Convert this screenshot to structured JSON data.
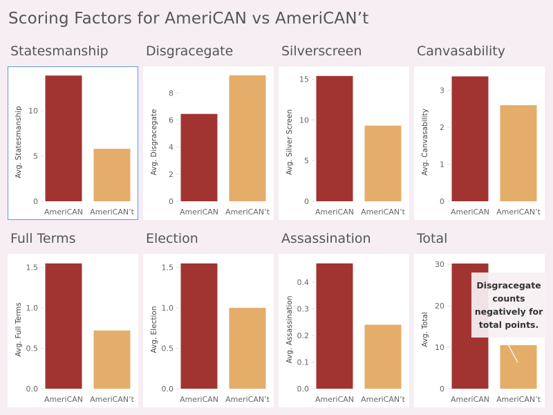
{
  "page_title": "Scoring Factors for AmeriCAN vs AmeriCAN’t",
  "colors": {
    "americans": "#a13431",
    "americants": "#e5ad6a"
  },
  "annotation": {
    "text": "Disgracegate counts negatively for total points."
  },
  "chart_data": [
    {
      "type": "bar",
      "title": "Statesmanship",
      "ylabel": "Avg. Statesmanship",
      "categories": [
        "AmeriCAN",
        "AmeriCAN’t"
      ],
      "values": [
        13.9,
        5.8
      ],
      "ylim": [
        0,
        14.3
      ],
      "ticks": [
        0,
        5,
        10
      ],
      "tick_labels": [
        "0",
        "5",
        "10"
      ],
      "grid": false
    },
    {
      "type": "bar",
      "title": "Disgracegate",
      "ylabel": "Avg. Disgracegate",
      "categories": [
        "AmeriCAN",
        "AmeriCAN’t"
      ],
      "values": [
        6.45,
        9.3
      ],
      "ylim": [
        0,
        9.55
      ],
      "ticks": [
        0,
        2,
        4,
        6,
        8
      ],
      "tick_labels": [
        "0",
        "2",
        "4",
        "6",
        "8"
      ],
      "grid": false
    },
    {
      "type": "bar",
      "title": "Silverscreen",
      "ylabel": "Avg. Silver Screen",
      "categories": [
        "AmeriCAN",
        "AmeriCAN’t"
      ],
      "values": [
        15.4,
        9.3
      ],
      "ylim": [
        0,
        15.9
      ],
      "ticks": [
        0,
        5,
        10,
        15
      ],
      "tick_labels": [
        "0",
        "5",
        "10",
        "15"
      ],
      "grid": false
    },
    {
      "type": "bar",
      "title": "Canvasability",
      "ylabel": "Avg. Canvasability",
      "categories": [
        "AmeriCAN",
        "AmeriCAN’t"
      ],
      "values": [
        3.38,
        2.6
      ],
      "ylim": [
        0,
        3.5
      ],
      "ticks": [
        0,
        1,
        2,
        3
      ],
      "tick_labels": [
        "0",
        "1",
        "2",
        "3"
      ],
      "grid": false
    },
    {
      "type": "bar",
      "title": "Full Terms",
      "ylabel": "Avg. Full Terms",
      "categories": [
        "AmeriCAN",
        "AmeriCAN’t"
      ],
      "values": [
        1.55,
        0.72
      ],
      "ylim": [
        0,
        1.6
      ],
      "ticks": [
        0,
        0.5,
        1,
        1.5
      ],
      "tick_labels": [
        "0.0",
        "0.5",
        "1.0",
        "1.5"
      ],
      "grid": false
    },
    {
      "type": "bar",
      "title": "Election",
      "ylabel": "Avg. Election",
      "categories": [
        "AmeriCAN",
        "AmeriCAN’t"
      ],
      "values": [
        1.55,
        1.0
      ],
      "ylim": [
        0,
        1.6
      ],
      "ticks": [
        0,
        0.5,
        1,
        1.5
      ],
      "tick_labels": [
        "0.0",
        "0.5",
        "1.0",
        "1.5"
      ],
      "grid": false
    },
    {
      "type": "bar",
      "title": "Assassination",
      "ylabel": "Avg. Assassination",
      "categories": [
        "AmeriCAN",
        "AmeriCAN’t"
      ],
      "values": [
        0.47,
        0.24
      ],
      "ylim": [
        0,
        0.485
      ],
      "ticks": [
        0,
        0.1,
        0.2,
        0.3,
        0.4
      ],
      "tick_labels": [
        "0.0",
        "0.1",
        "0.2",
        "0.3",
        "0.4"
      ],
      "grid": false
    },
    {
      "type": "bar",
      "title": "Total",
      "ylabel": "Avg. Total",
      "categories": [
        "AmeriCAN",
        "AmeriCAN’t"
      ],
      "values": [
        30.2,
        10.5
      ],
      "ylim": [
        0,
        31.2
      ],
      "ticks": [
        0,
        10,
        20,
        30
      ],
      "tick_labels": [
        "0",
        "10",
        "20",
        "30"
      ],
      "grid": false
    }
  ]
}
